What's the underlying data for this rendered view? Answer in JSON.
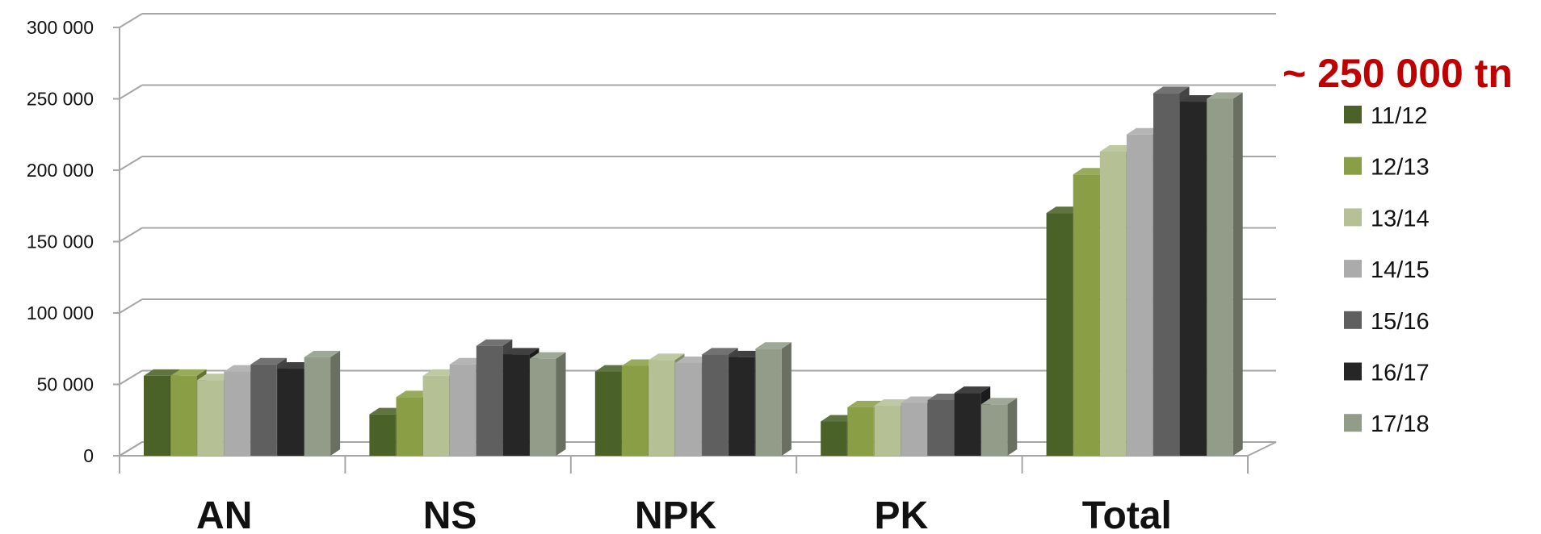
{
  "chart_data": {
    "type": "bar",
    "categories": [
      "AN",
      "NS",
      "NPK",
      "PK",
      "Total"
    ],
    "series": [
      {
        "name": "11/12",
        "color": "#4a6128",
        "values": [
          56000,
          29000,
          59000,
          24000,
          170000
        ]
      },
      {
        "name": "12/13",
        "color": "#8a9e45",
        "values": [
          56000,
          41000,
          63000,
          34000,
          197000
        ]
      },
      {
        "name": "13/14",
        "color": "#b5c095",
        "values": [
          53000,
          56000,
          67000,
          35000,
          213000
        ]
      },
      {
        "name": "14/15",
        "color": "#ababab",
        "values": [
          59000,
          64000,
          65000,
          37000,
          225000
        ]
      },
      {
        "name": "15/16",
        "color": "#5f5f5f",
        "values": [
          64000,
          77000,
          71000,
          39000,
          254000
        ]
      },
      {
        "name": "16/17",
        "color": "#262626",
        "values": [
          61000,
          71000,
          69000,
          44000,
          248000
        ]
      },
      {
        "name": "17/18",
        "color": "#929c88",
        "values": [
          69000,
          68000,
          75000,
          36000,
          250000
        ]
      }
    ],
    "ylim": [
      0,
      300000
    ],
    "yticks": [
      {
        "value": 0,
        "label": "0"
      },
      {
        "value": 50000,
        "label": "50 000"
      },
      {
        "value": 100000,
        "label": "100 000"
      },
      {
        "value": 150000,
        "label": "150 000"
      },
      {
        "value": 200000,
        "label": "200 000"
      },
      {
        "value": 250000,
        "label": "250 000"
      },
      {
        "value": 300000,
        "label": "300 000"
      }
    ],
    "grid": true,
    "legend_position": "right",
    "annotation": {
      "text": "~ 250 000 tn",
      "color": "#c00000"
    }
  }
}
